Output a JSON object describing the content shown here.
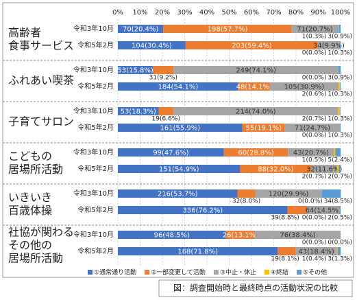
{
  "chart_data": {
    "type": "stacked-bar-horizontal",
    "xlim": [
      0,
      100
    ],
    "xticks": [
      {
        "value": 0,
        "label": "0%"
      },
      {
        "value": 10,
        "label": "10%"
      },
      {
        "value": 20,
        "label": "20%"
      },
      {
        "value": 30,
        "label": "30%"
      },
      {
        "value": 40,
        "label": "40%"
      },
      {
        "value": 50,
        "label": "50%"
      },
      {
        "value": 60,
        "label": "60%"
      },
      {
        "value": 70,
        "label": "70%"
      },
      {
        "value": 80,
        "label": "80%"
      },
      {
        "value": 90,
        "label": "90%"
      },
      {
        "value": 100,
        "label": "100%"
      }
    ],
    "grid": true,
    "groups": [
      {
        "label": [
          "高齢者",
          "食事サービス"
        ]
      },
      {
        "label": [
          "ふれあい喫茶"
        ]
      },
      {
        "label": [
          "子育てサロン"
        ]
      },
      {
        "label": [
          "こどもの",
          "居場所活動"
        ]
      },
      {
        "label": [
          "いきいき",
          "百歳体操"
        ]
      },
      {
        "label": [
          "社協が関わる",
          "その他の",
          "居場所活動"
        ]
      }
    ],
    "categories": [
      "令和3年10月",
      "令和5年2月",
      "令和3年10月",
      "令和5年2月",
      "令和3年10月",
      "令和5年2月",
      "令和3年10月",
      "令和5年2月",
      "令和3年10月",
      "令和5年2月",
      "令和3年10月",
      "令和5年2月"
    ],
    "series": [
      {
        "name": "①通常通り活動",
        "color": "#4472c4",
        "values": [
          20.4,
          30.4,
          15.8,
          54.1,
          18.3,
          55.9,
          47.6,
          54.9,
          53.7,
          76.2,
          48.5,
          71.8
        ],
        "value_labels": [
          "70(20.4%)",
          "104(30.4%)",
          "53(15.8%)",
          "184(54.1%)",
          "53(18.3%)",
          "161(55.9%)",
          "99(47.6%)",
          "151(54.9%)",
          "216(53.7%)",
          "336(76.2%)",
          "96(48.5%)",
          "168(71.8%)"
        ]
      },
      {
        "name": "②一部変更して活動",
        "color": "#ed7d31",
        "values": [
          57.7,
          59.4,
          9.2,
          14.1,
          6.6,
          19.1,
          28.8,
          32.0,
          8.0,
          8.8,
          13.1,
          8.1
        ],
        "value_labels": [
          "198(57.7%)",
          "203(59.4%)",
          "31(9.2%)",
          "48(14.1%)",
          "19(6.6%)",
          "55(19.1%)",
          "60(28.8%)",
          "88(32.0%)",
          "32(8.0%)",
          "39(8.8%)",
          "26(13.1%)",
          "19(8.1%)"
        ]
      },
      {
        "name": "③中止・休止",
        "color": "#a5a5a5",
        "values": [
          20.7,
          9.9,
          74.1,
          30.9,
          74.0,
          24.7,
          20.7,
          11.6,
          29.9,
          14.5,
          38.4,
          18.4
        ],
        "value_labels": [
          "71(20.7%)",
          "34(9.9%)",
          "249(74.1%)",
          "105(30.9%)",
          "214(74.0%)",
          "71(24.7%)",
          "43(20.7%)",
          "32(11.6%)",
          "120(29.9%)",
          "64(14.5%)",
          "76(38.4%)",
          "43(18.4%)"
        ]
      },
      {
        "name": "④終結",
        "color": "#ffc000",
        "values": [
          0.3,
          0.0,
          0.0,
          0.6,
          0.7,
          0.0,
          0.5,
          0.7,
          0.0,
          0.0,
          0.0,
          0.4
        ],
        "value_labels": [
          "1(0.3%)",
          "0(0.0%)",
          "0(0.0%)",
          "2(0.6%)",
          "2(0.7%)",
          "0(0.0%)",
          "1(0.5%)",
          "2(0.7%)",
          "0(0.0%)",
          "0(0.0%)",
          "0(0.0%)",
          "1(0.4%)"
        ]
      },
      {
        "name": "⑤その他",
        "color": "#5b9bd5",
        "values": [
          0.9,
          0.3,
          0.9,
          0.3,
          0.3,
          0.3,
          2.4,
          0.7,
          8.5,
          0.5,
          0.0,
          1.3
        ],
        "value_labels": [
          "3(0.9%)",
          "1(0.3%)",
          "3(0.9%)",
          "1(0.3%)",
          "1(0.3%)",
          "1(0.3%)",
          "5(2.4%)",
          "2(0.7%)",
          "34(8.5%)",
          "2(0.5%)",
          "0(0.0%)",
          "3(1.3%)"
        ]
      }
    ],
    "caption": "図：調査開始時と最終時点の活動状況の比較"
  }
}
